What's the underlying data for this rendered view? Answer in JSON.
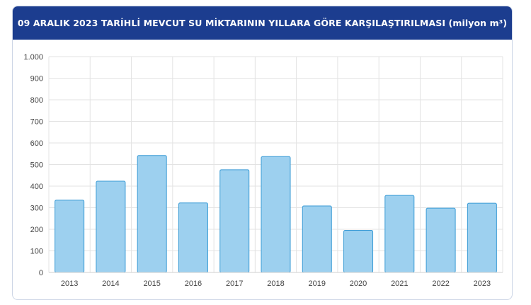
{
  "header": {
    "title": "09 ARALIK 2023 TARİHLİ MEVCUT SU MİKTARININ YILLARA GÖRE KARŞILAŞTIRILMASI (milyon m³)"
  },
  "colors": {
    "header_bg": "#1c3d8f",
    "bar_fill": "#9dd0ef",
    "bar_stroke": "#3a9bd5",
    "grid": "#e3e3e3"
  },
  "chart_data": {
    "type": "bar",
    "title": "09 ARALIK 2023 TARİHLİ MEVCUT SU MİKTARININ YILLARA GÖRE KARŞILAŞTIRILMASI (milyon m³)",
    "xlabel": "",
    "ylabel": "",
    "categories": [
      "2013",
      "2014",
      "2015",
      "2016",
      "2017",
      "2018",
      "2019",
      "2020",
      "2021",
      "2022",
      "2023"
    ],
    "values": [
      335,
      423,
      542,
      322,
      476,
      537,
      308,
      195,
      357,
      298,
      321
    ],
    "ylim": [
      0,
      1000
    ],
    "yticks": [
      0,
      100,
      200,
      300,
      400,
      500,
      600,
      700,
      800,
      900,
      1000
    ],
    "ytick_labels": [
      "0",
      "100",
      "200",
      "300",
      "400",
      "500",
      "600",
      "700",
      "800",
      "900",
      "1.000"
    ],
    "grid": true,
    "legend": "none"
  }
}
